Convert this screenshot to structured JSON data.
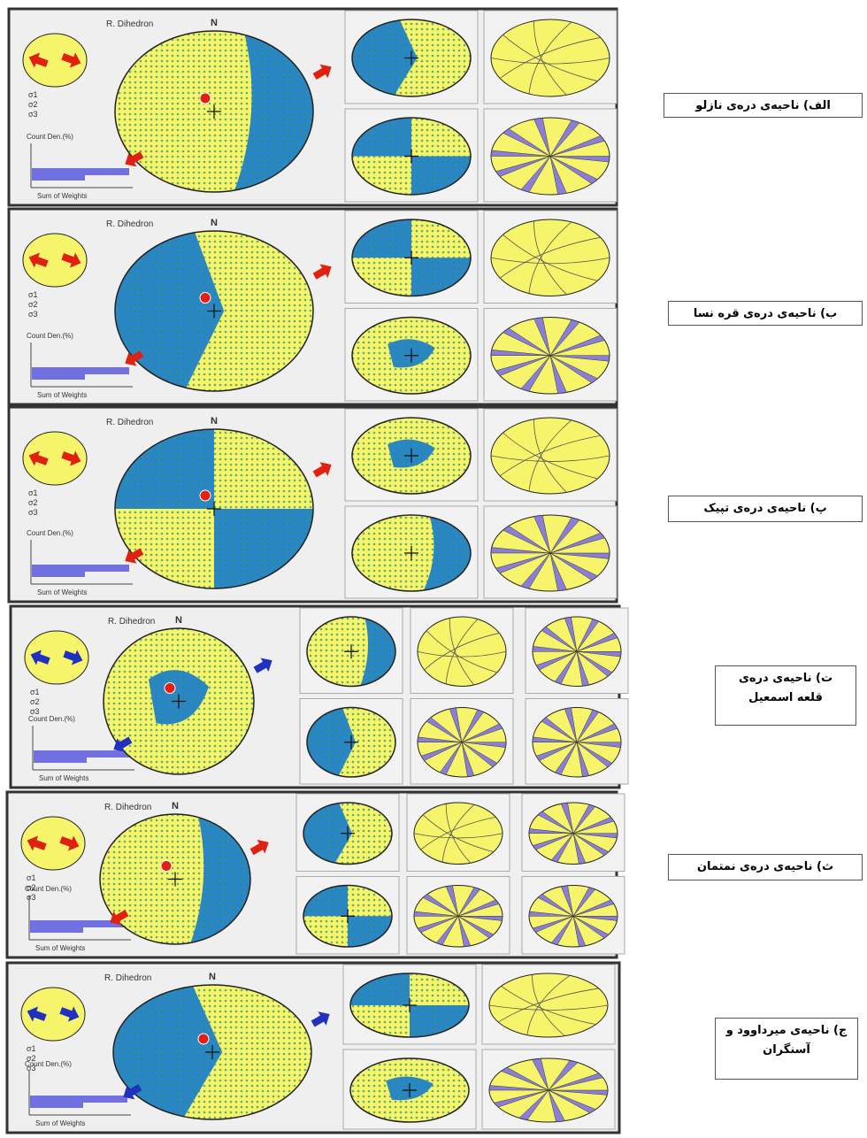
{
  "panels": [
    {
      "title": "R. Dihedron",
      "north": "N",
      "stress_labels": [
        "σ1",
        "σ2",
        "σ3"
      ],
      "axis_label": "Count Den.(%)",
      "x_label": "Sum of Weights",
      "caption": [
        "الف) ناحیه‌ی دره‌ی نازلو"
      ]
    },
    {
      "title": "R. Dihedron",
      "north": "N",
      "stress_labels": [
        "σ1",
        "σ2",
        "σ3"
      ],
      "axis_label": "Count Den.(%)",
      "x_label": "Sum of Weights",
      "caption": [
        "ب) ناحیه‌ی دره‌ی قره نسا"
      ]
    },
    {
      "title": "R. Dihedron",
      "north": "N",
      "stress_labels": [
        "σ1",
        "σ2",
        "σ3"
      ],
      "axis_label": "Count Den.(%)",
      "x_label": "Sum of Weights",
      "caption": [
        "پ) ناحیه‌ی دره‌ی تپیک"
      ]
    },
    {
      "title": "R. Dihedron",
      "north": "N",
      "stress_labels": [
        "σ1",
        "σ2",
        "σ3"
      ],
      "axis_label": "Count Den.(%)",
      "x_label": "Sum of Weights",
      "caption": [
        "ت) ناحیه‌ی دره‌ی",
        "قلعه اسمعیل"
      ]
    },
    {
      "title": "R. Dihedron",
      "north": "N",
      "stress_labels": [
        "σ1",
        "σ2",
        "σ3"
      ],
      "axis_label": "Count Den.(%)",
      "x_label": "Sum of Weights",
      "caption": [
        "ث) ناحیه‌ی دره‌ی نمتمان"
      ]
    },
    {
      "title": "R. Dihedron",
      "north": "N",
      "stress_labels": [
        "σ1",
        "σ2",
        "σ3"
      ],
      "axis_label": "Count Den.(%)",
      "x_label": "Sum of Weights",
      "caption": [
        "ج) ناحیه‌ی میرداوود و",
        "آسنگران"
      ]
    }
  ]
}
